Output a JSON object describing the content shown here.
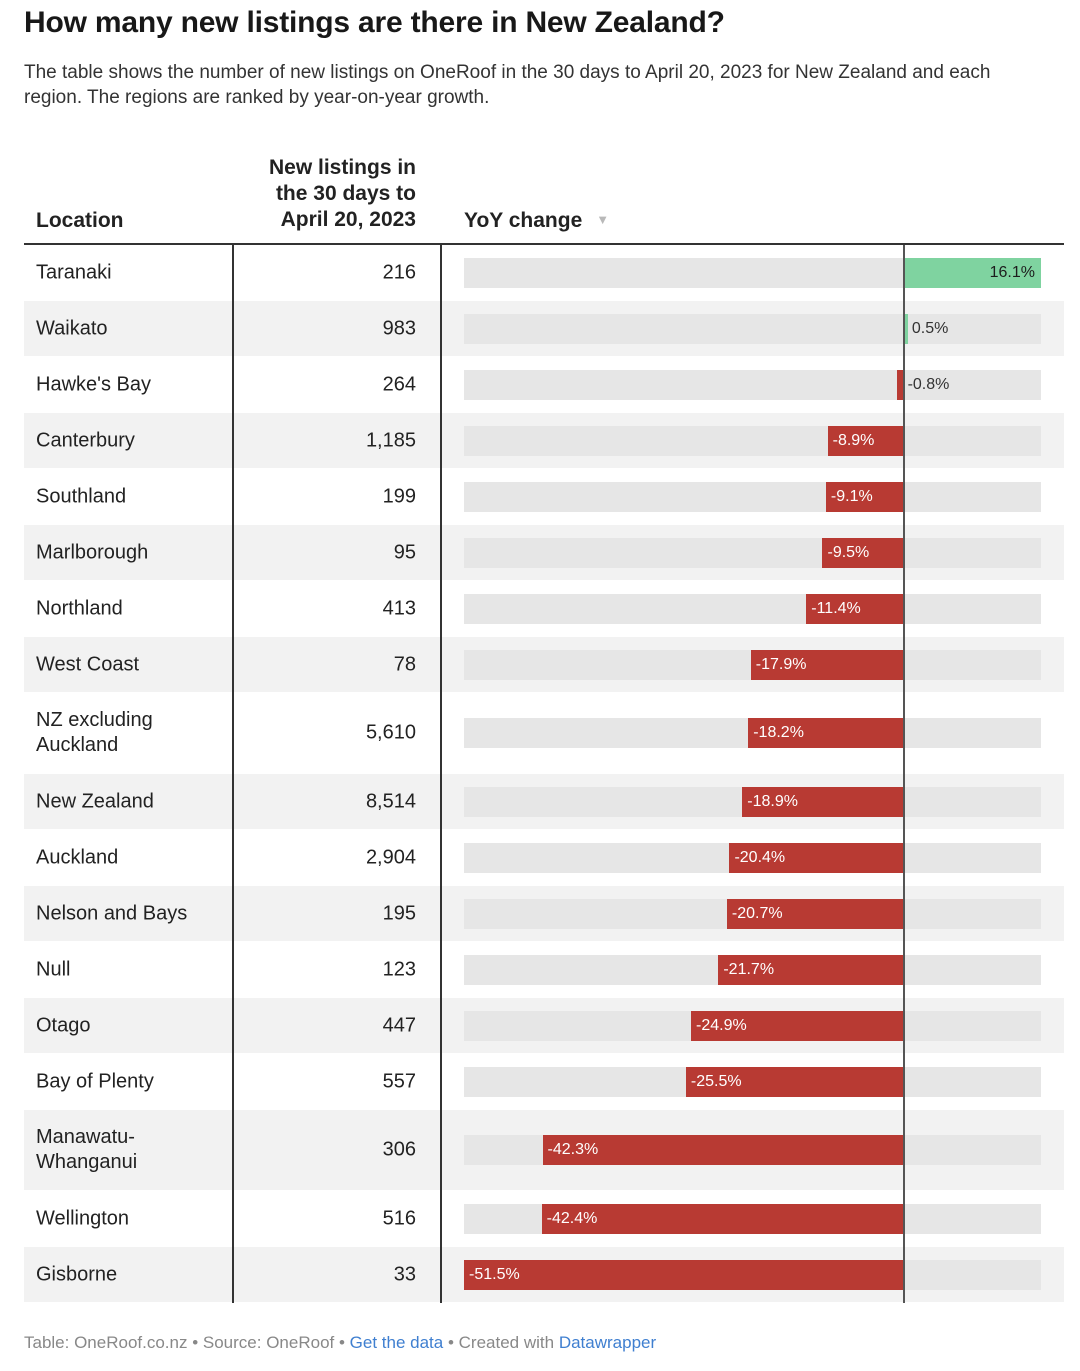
{
  "title": "How many new listings are there in New Zealand?",
  "description": "The table shows the number of new listings on OneRoof in the 30 days to April 20, 2023 for New Zealand and each region. The regions are ranked by year-on-year growth.",
  "columns": {
    "location": "Location",
    "listings": [
      "New listings in",
      "the 30 days to",
      "April 20, 2023"
    ],
    "yoy": "YoY change",
    "sort_icon": "sort-descending-icon"
  },
  "colors": {
    "negative": "#b83a33",
    "positive": "#7fd3a0",
    "track": "#e6e6e6"
  },
  "chart_data": {
    "type": "table",
    "yoy_domain": [
      -51.5,
      16.1
    ],
    "rows": [
      {
        "location": "Taranaki",
        "listings": "216",
        "yoy": 16.1,
        "yoy_label": "16.1%"
      },
      {
        "location": "Waikato",
        "listings": "983",
        "yoy": 0.5,
        "yoy_label": "0.5%"
      },
      {
        "location": "Hawke's Bay",
        "listings": "264",
        "yoy": -0.8,
        "yoy_label": "-0.8%"
      },
      {
        "location": "Canterbury",
        "listings": "1,185",
        "yoy": -8.9,
        "yoy_label": "-8.9%"
      },
      {
        "location": "Southland",
        "listings": "199",
        "yoy": -9.1,
        "yoy_label": "-9.1%"
      },
      {
        "location": "Marlborough",
        "listings": "95",
        "yoy": -9.5,
        "yoy_label": "-9.5%"
      },
      {
        "location": "Northland",
        "listings": "413",
        "yoy": -11.4,
        "yoy_label": "-11.4%"
      },
      {
        "location": "West Coast",
        "listings": "78",
        "yoy": -17.9,
        "yoy_label": "-17.9%"
      },
      {
        "location": "NZ excluding Auckland",
        "listings": "5,610",
        "yoy": -18.2,
        "yoy_label": "-18.2%"
      },
      {
        "location": "New Zealand",
        "listings": "8,514",
        "yoy": -18.9,
        "yoy_label": "-18.9%"
      },
      {
        "location": "Auckland",
        "listings": "2,904",
        "yoy": -20.4,
        "yoy_label": "-20.4%"
      },
      {
        "location": "Nelson and Bays",
        "listings": "195",
        "yoy": -20.7,
        "yoy_label": "-20.7%"
      },
      {
        "location": "Null",
        "listings": "123",
        "yoy": -21.7,
        "yoy_label": "-21.7%"
      },
      {
        "location": "Otago",
        "listings": "447",
        "yoy": -24.9,
        "yoy_label": "-24.9%"
      },
      {
        "location": "Bay of Plenty",
        "listings": "557",
        "yoy": -25.5,
        "yoy_label": "-25.5%"
      },
      {
        "location": "Manawatu-Whanganui",
        "listings": "306",
        "yoy": -42.3,
        "yoy_label": "-42.3%"
      },
      {
        "location": "Wellington",
        "listings": "516",
        "yoy": -42.4,
        "yoy_label": "-42.4%"
      },
      {
        "location": "Gisborne",
        "listings": "33",
        "yoy": -51.5,
        "yoy_label": "-51.5%"
      }
    ]
  },
  "footer": {
    "table_credit": "Table: OneRoof.co.nz",
    "separator": " • ",
    "source": "Source: OneRoof",
    "get_data": "Get the data",
    "created_with": "Created with",
    "tool": "Datawrapper"
  }
}
